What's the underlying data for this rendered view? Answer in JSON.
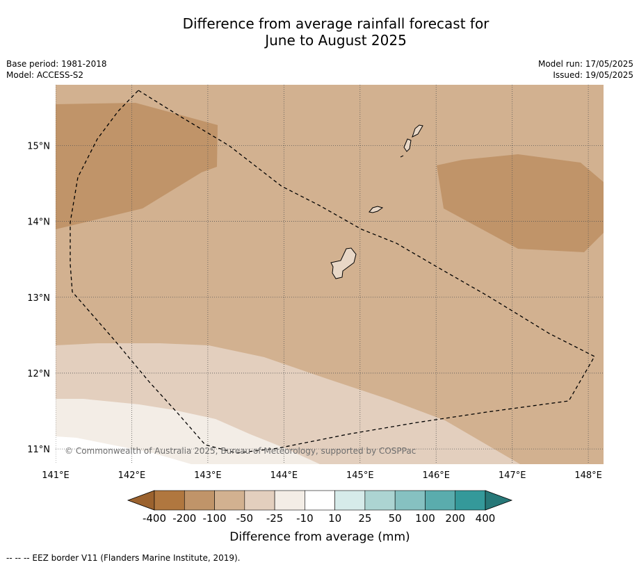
{
  "title": {
    "line1": "Difference from average rainfall forecast for",
    "line2": "June to August 2025"
  },
  "meta": {
    "base_period": "Base period: 1981-2018",
    "model": "Model: ACCESS-S2",
    "model_run": "Model run: 17/05/2025",
    "issued": "Issued: 19/05/2025"
  },
  "map": {
    "lon_ticks": [
      "141°E",
      "142°E",
      "143°E",
      "144°E",
      "145°E",
      "146°E",
      "147°E",
      "148°E"
    ],
    "lat_ticks": [
      "15°N",
      "14°N",
      "13°N",
      "12°N",
      "11°N"
    ],
    "lon_values": [
      141,
      142,
      143,
      144,
      145,
      146,
      147,
      148
    ],
    "lat_values": [
      15,
      14,
      13,
      12,
      11
    ],
    "extent": {
      "lon": [
        141,
        148.2
      ],
      "lat": [
        10.8,
        15.8
      ]
    },
    "copyright": "© Commonwealth of Australia 2025, Bureau of Meteorology, supported by COSPPac",
    "grid": true
  },
  "colors": {
    "c_lt_m400": "#9b622e",
    "c_m400_m200": "#b0773f",
    "c_m200_m100": "#c09469",
    "c_m100_m50": "#d2b190",
    "c_m50_m25": "#e3cfbe",
    "c_m25_m10": "#f3ede6",
    "c_m10_10": "#ffffff",
    "c_10_25": "#d6ebea",
    "c_25_50": "#acd4d2",
    "c_50_100": "#86c1c1",
    "c_100_200": "#5aacad",
    "c_200_400": "#34999a",
    "c_gt_400": "#277878"
  },
  "colorbar": {
    "labels": [
      "-400",
      "-200",
      "-100",
      "-50",
      "-25",
      "-10",
      "10",
      "25",
      "50",
      "100",
      "200",
      "400"
    ],
    "title": "Difference from average (mm)"
  },
  "footnote": "--  --  -- EEZ border V11 (Flanders Marine Institute, 2019)."
}
